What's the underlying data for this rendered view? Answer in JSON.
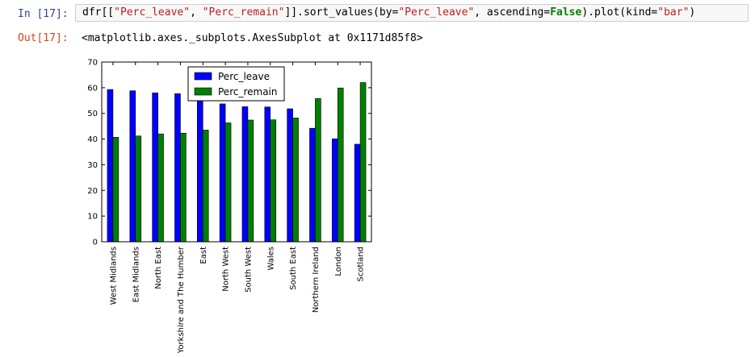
{
  "cell": {
    "in_prompt": "In [17]:",
    "out_prompt": "Out[17]:",
    "code_tokens": [
      {
        "t": "dfr[[",
        "c": ""
      },
      {
        "t": "\"Perc_leave\"",
        "c": "str"
      },
      {
        "t": ", ",
        "c": ""
      },
      {
        "t": "\"Perc_remain\"",
        "c": "str"
      },
      {
        "t": "]].sort_values(by=",
        "c": ""
      },
      {
        "t": "\"Perc_leave\"",
        "c": "str"
      },
      {
        "t": ", ascending=",
        "c": ""
      },
      {
        "t": "False",
        "c": "kw"
      },
      {
        "t": ").plot(kind=",
        "c": ""
      },
      {
        "t": "\"bar\"",
        "c": "str"
      },
      {
        "t": ")",
        "c": ""
      }
    ],
    "output_text": "<matplotlib.axes._subplots.AxesSubplot at 0x1171d85f8>"
  },
  "chart_data": {
    "type": "bar",
    "categories": [
      "West Midlands",
      "East Midlands",
      "North East",
      "Yorkshire and The Humber",
      "East",
      "North West",
      "South West",
      "Wales",
      "South East",
      "Northern Ireland",
      "London",
      "Scotland"
    ],
    "series": [
      {
        "name": "Perc_leave",
        "color": "#0000ff",
        "values": [
          59.3,
          58.8,
          58.0,
          57.7,
          56.5,
          53.7,
          52.6,
          52.5,
          51.8,
          44.2,
          40.1,
          38.0
        ]
      },
      {
        "name": "Perc_remain",
        "color": "#008000",
        "values": [
          40.7,
          41.2,
          42.0,
          42.3,
          43.5,
          46.3,
          47.4,
          47.5,
          48.2,
          55.8,
          59.9,
          62.0
        ]
      }
    ],
    "ylim": [
      0,
      70
    ],
    "yticks": [
      "0",
      "10",
      "20",
      "30",
      "40",
      "50",
      "60",
      "70"
    ],
    "legend_position": "upper-center",
    "grid": false
  }
}
